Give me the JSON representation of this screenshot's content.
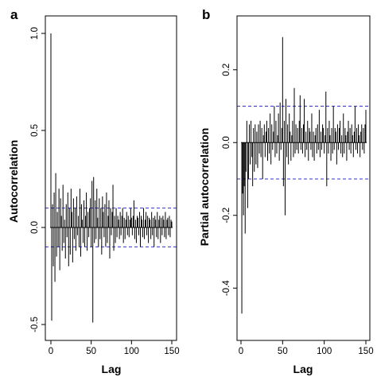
{
  "chart_data": [
    {
      "type": "bar",
      "panel_label": "a",
      "xlabel": "Lag",
      "ylabel": "Autocorrelation",
      "xlim": [
        0,
        150
      ],
      "ylim": [
        -0.5,
        1.0
      ],
      "xticks": [
        "0",
        "50",
        "100",
        "150"
      ],
      "xtick_values": [
        0,
        50,
        100,
        150
      ],
      "yticks": [
        "-0.5",
        "0.0",
        "0.5",
        "1.0"
      ],
      "ytick_values": [
        -0.5,
        0.0,
        0.5,
        1.0
      ],
      "confidence_limits": [
        0.1,
        -0.1
      ],
      "confidence_color": "#3333cc",
      "lags": [
        0,
        1,
        2,
        3,
        4,
        5,
        6,
        7,
        8,
        9,
        10,
        11,
        12,
        13,
        14,
        15,
        16,
        17,
        18,
        19,
        20,
        21,
        22,
        23,
        24,
        25,
        26,
        27,
        28,
        29,
        30,
        31,
        32,
        33,
        34,
        35,
        36,
        37,
        38,
        39,
        40,
        41,
        42,
        43,
        44,
        45,
        46,
        47,
        48,
        49,
        50,
        51,
        52,
        53,
        54,
        55,
        56,
        57,
        58,
        59,
        60,
        61,
        62,
        63,
        64,
        65,
        66,
        67,
        68,
        69,
        70,
        71,
        72,
        73,
        74,
        75,
        76,
        77,
        78,
        79,
        80,
        81,
        82,
        83,
        84,
        85,
        86,
        87,
        88,
        89,
        90,
        91,
        92,
        93,
        94,
        95,
        96,
        97,
        98,
        99,
        100,
        101,
        102,
        103,
        104,
        105,
        106,
        107,
        108,
        109,
        110,
        111,
        112,
        113,
        114,
        115,
        116,
        117,
        118,
        119,
        120,
        121,
        122,
        123,
        124,
        125,
        126,
        127,
        128,
        129,
        130,
        131,
        132,
        133,
        134,
        135,
        136,
        137,
        138,
        139,
        140,
        141,
        142,
        143,
        144,
        145,
        146,
        147,
        148,
        149,
        150
      ],
      "values": [
        1.0,
        -0.48,
        0.12,
        -0.2,
        0.18,
        -0.28,
        0.28,
        -0.15,
        0.08,
        -0.1,
        0.2,
        -0.22,
        0.15,
        0.06,
        -0.12,
        0.22,
        -0.08,
        0.04,
        -0.16,
        0.12,
        -0.05,
        0.18,
        -0.2,
        0.1,
        -0.14,
        0.2,
        0.08,
        -0.18,
        0.15,
        -0.06,
        0.1,
        -0.12,
        0.16,
        -0.04,
        0.06,
        -0.1,
        0.2,
        -0.15,
        0.12,
        0.04,
        -0.08,
        0.14,
        -0.1,
        0.06,
        0.18,
        -0.12,
        0.08,
        -0.05,
        0.1,
        0.15,
        -0.1,
        0.24,
        -0.49,
        0.26,
        -0.08,
        0.14,
        -0.06,
        0.2,
        0.05,
        -0.1,
        0.15,
        -0.06,
        0.1,
        -0.14,
        0.16,
        0.08,
        -0.05,
        0.12,
        -0.1,
        0.18,
        -0.08,
        0.06,
        0.14,
        -0.16,
        0.1,
        -0.04,
        0.08,
        0.22,
        -0.12,
        0.06,
        -0.08,
        0.1,
        -0.05,
        0.06,
        0.04,
        -0.06,
        0.08,
        -0.04,
        0.06,
        0.1,
        -0.08,
        0.05,
        -0.06,
        0.04,
        0.08,
        -0.04,
        0.06,
        -0.05,
        0.04,
        0.1,
        0.05,
        -0.04,
        0.06,
        0.14,
        -0.06,
        0.04,
        -0.08,
        0.06,
        0.05,
        -0.04,
        0.08,
        -0.1,
        0.06,
        0.04,
        -0.05,
        0.1,
        -0.06,
        0.04,
        0.08,
        -0.04,
        0.06,
        -0.08,
        0.05,
        0.04,
        -0.06,
        0.08,
        -0.04,
        0.05,
        -0.1,
        0.06,
        0.04,
        -0.05,
        0.08,
        -0.06,
        0.04,
        0.06,
        -0.08,
        0.05,
        -0.04,
        0.06,
        0.04,
        -0.05,
        0.08,
        -0.06,
        0.04,
        0.05,
        -0.04,
        0.06,
        -0.05,
        0.04,
        0.03
      ]
    },
    {
      "type": "bar",
      "panel_label": "b",
      "xlabel": "Lag",
      "ylabel": "Partial autocorrelation",
      "xlim": [
        1,
        150
      ],
      "ylim": [
        -0.5,
        0.3
      ],
      "xticks": [
        "0",
        "50",
        "100",
        "150"
      ],
      "xtick_values": [
        0,
        50,
        100,
        150
      ],
      "yticks": [
        "-0.4",
        "-0.2",
        "0.0",
        "0.2"
      ],
      "ytick_values": [
        -0.4,
        -0.2,
        0.0,
        0.2
      ],
      "confidence_limits": [
        0.1,
        -0.1
      ],
      "confidence_color": "#3333cc",
      "lags": [
        1,
        2,
        3,
        4,
        5,
        6,
        7,
        8,
        9,
        10,
        11,
        12,
        13,
        14,
        15,
        16,
        17,
        18,
        19,
        20,
        21,
        22,
        23,
        24,
        25,
        26,
        27,
        28,
        29,
        30,
        31,
        32,
        33,
        34,
        35,
        36,
        37,
        38,
        39,
        40,
        41,
        42,
        43,
        44,
        45,
        46,
        47,
        48,
        49,
        50,
        51,
        52,
        53,
        54,
        55,
        56,
        57,
        58,
        59,
        60,
        61,
        62,
        63,
        64,
        65,
        66,
        67,
        68,
        69,
        70,
        71,
        72,
        73,
        74,
        75,
        76,
        77,
        78,
        79,
        80,
        81,
        82,
        83,
        84,
        85,
        86,
        87,
        88,
        89,
        90,
        91,
        92,
        93,
        94,
        95,
        96,
        97,
        98,
        99,
        100,
        101,
        102,
        103,
        104,
        105,
        106,
        107,
        108,
        109,
        110,
        111,
        112,
        113,
        114,
        115,
        116,
        117,
        118,
        119,
        120,
        121,
        122,
        123,
        124,
        125,
        126,
        127,
        128,
        129,
        130,
        131,
        132,
        133,
        134,
        135,
        136,
        137,
        138,
        139,
        140,
        141,
        142,
        143,
        144,
        145,
        146,
        147,
        148,
        149,
        150
      ],
      "values": [
        -0.47,
        -0.14,
        -0.2,
        -0.12,
        -0.25,
        -0.08,
        0.06,
        -0.18,
        -0.1,
        0.05,
        -0.06,
        0.06,
        -0.04,
        -0.12,
        0.04,
        -0.08,
        0.05,
        -0.06,
        0.03,
        -0.07,
        0.05,
        -0.03,
        0.06,
        -0.04,
        0.04,
        -0.1,
        0.02,
        0.05,
        -0.04,
        0.03,
        0.06,
        -0.05,
        0.04,
        -0.03,
        0.08,
        -0.06,
        0.05,
        -0.02,
        0.03,
        0.1,
        -0.04,
        0.06,
        -0.03,
        0.02,
        0.08,
        -0.05,
        0.11,
        -0.02,
        0.04,
        0.29,
        -0.12,
        0.06,
        -0.2,
        0.12,
        -0.04,
        0.05,
        -0.06,
        0.08,
        0.03,
        -0.05,
        0.02,
        0.06,
        -0.04,
        0.15,
        -0.03,
        0.05,
        -0.02,
        0.04,
        -0.03,
        0.06,
        0.13,
        -0.02,
        0.04,
        -0.03,
        0.05,
        0.12,
        -0.04,
        0.03,
        -0.02,
        0.06,
        -0.05,
        0.04,
        0.03,
        -0.02,
        0.08,
        -0.04,
        0.03,
        -0.05,
        0.02,
        0.04,
        -0.03,
        0.05,
        -0.02,
        0.09,
        -0.04,
        0.03,
        -0.02,
        0.05,
        0.04,
        -0.03,
        0.02,
        0.14,
        -0.12,
        0.04,
        -0.03,
        0.06,
        0.02,
        -0.05,
        0.04,
        -0.03,
        0.1,
        -0.02,
        0.04,
        0.03,
        -0.06,
        0.05,
        -0.02,
        0.04,
        0.06,
        -0.03,
        0.02,
        -0.04,
        0.08,
        -0.03,
        0.04,
        0.02,
        -0.05,
        0.03,
        0.06,
        -0.02,
        0.04,
        -0.03,
        0.05,
        0.02,
        -0.04,
        0.03,
        0.1,
        -0.02,
        0.04,
        -0.03,
        0.05,
        0.02,
        -0.04,
        0.03,
        0.05,
        -0.02,
        0.04,
        -0.03,
        0.05,
        0.09
      ]
    }
  ]
}
